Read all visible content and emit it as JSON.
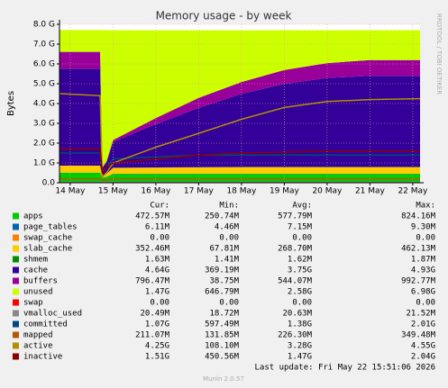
{
  "chart_data": {
    "type": "area",
    "title": "Memory usage - by week",
    "y_label": "Bytes",
    "watermark": "RRDTOOL / TOBI OETIKER",
    "x": [
      13.75,
      14.7,
      14.75,
      14.85,
      15,
      16,
      17,
      18,
      19,
      20,
      21,
      22.17
    ],
    "xlim": [
      13.75,
      22.17
    ],
    "xticks": [
      {
        "value": 14,
        "label": "14 May"
      },
      {
        "value": 15,
        "label": "15 May"
      },
      {
        "value": 16,
        "label": "16 May"
      },
      {
        "value": 17,
        "label": "17 May"
      },
      {
        "value": 18,
        "label": "18 May"
      },
      {
        "value": 19,
        "label": "19 May"
      },
      {
        "value": 20,
        "label": "20 May"
      },
      {
        "value": 21,
        "label": "21 May"
      },
      {
        "value": 22,
        "label": "22 May"
      }
    ],
    "ylim": [
      0,
      8589934592
    ],
    "yticks": [
      {
        "value": 0,
        "label": "0.0"
      },
      {
        "value": 1073741824,
        "label": "1.0 G"
      },
      {
        "value": 2147483648,
        "label": "2.0 G"
      },
      {
        "value": 3221225472,
        "label": "3.0 G"
      },
      {
        "value": 4294967296,
        "label": "4.0 G"
      },
      {
        "value": 5368709120,
        "label": "5.0 G"
      },
      {
        "value": 6442450944,
        "label": "6.0 G"
      },
      {
        "value": 7516192768,
        "label": "7.0 G"
      },
      {
        "value": 8589934592,
        "label": "8.0 G"
      }
    ],
    "grid": true,
    "legend_headers": [
      "Cur:",
      "Min:",
      "Avg:",
      "Max:"
    ],
    "series": [
      {
        "name": "apps",
        "color": "#00cc00",
        "style": "area",
        "values": [
          540000000.0,
          540000000.0,
          270000000.0,
          320000000.0,
          480000000.0,
          480000000.0,
          480000000.0,
          480000000.0,
          480000000.0,
          480000000.0,
          480000000.0,
          480000000.0
        ],
        "stats": [
          "472.57M",
          "250.74M",
          "577.79M",
          "824.16M"
        ]
      },
      {
        "name": "page_tables",
        "color": "#0066b3",
        "style": "area",
        "values": [
          6400000.0,
          6400000.0,
          6400000.0,
          6400000.0,
          6400000.0,
          6400000.0,
          6400000.0,
          6400000.0,
          6400000.0,
          6400000.0,
          6400000.0,
          6400000.0
        ],
        "stats": [
          "6.11M",
          "4.46M",
          "7.15M",
          "9.30M"
        ]
      },
      {
        "name": "swap_cache",
        "color": "#ff8000",
        "style": "area",
        "values": [
          0,
          0,
          0,
          0,
          0,
          0,
          0,
          0,
          0,
          0,
          0,
          0
        ],
        "stats": [
          "0.00",
          "0.00",
          "0.00",
          "0.00"
        ]
      },
      {
        "name": "slab_cache",
        "color": "#ffcc00",
        "style": "area",
        "values": [
          380000000.0,
          380000000.0,
          75000000.0,
          160000000.0,
          320000000.0,
          340000000.0,
          350000000.0,
          365000000.0,
          365000000.0,
          365000000.0,
          365000000.0,
          365000000.0
        ],
        "stats": [
          "352.46M",
          "67.81M",
          "268.70M",
          "462.13M"
        ]
      },
      {
        "name": "shmem",
        "color": "#008f00",
        "style": "area",
        "values": [
          1700000.0,
          1700000.0,
          1700000.0,
          1700000.0,
          1700000.0,
          1700000.0,
          1700000.0,
          1700000.0,
          1700000.0,
          1700000.0,
          1700000.0,
          1700000.0
        ],
        "stats": [
          "1.63M",
          "1.41M",
          "1.62M",
          "1.87M"
        ]
      },
      {
        "name": "cache",
        "color": "#330099",
        "style": "area",
        "values": [
          5260000000.0,
          5260000000.0,
          430000000.0,
          640000000.0,
          1400000000.0,
          2360000000.0,
          3220000000.0,
          3970000000.0,
          4510000000.0,
          4830000000.0,
          4940000000.0,
          4940000000.0
        ],
        "stats": [
          "4.64G",
          "369.19M",
          "3.75G",
          "4.93G"
        ]
      },
      {
        "name": "buffers",
        "color": "#990099",
        "style": "area",
        "values": [
          910000000.0,
          910000000.0,
          43000000.0,
          54000000.0,
          107000000.0,
          320000000.0,
          540000000.0,
          640000000.0,
          750000000.0,
          805000000.0,
          860000000.0,
          860000000.0
        ],
        "stats": [
          "796.47M",
          "38.75M",
          "544.07M",
          "992.77M"
        ]
      },
      {
        "name": "unused",
        "color": "#ccff00",
        "style": "area",
        "values": [
          1180000000.0,
          1180000000.0,
          7450000000.0,
          7090000000.0,
          5960000000.0,
          4760000000.0,
          3670000000.0,
          2800000000.0,
          2160000000.0,
          1780000000.0,
          1620000000.0,
          1620000000.0
        ],
        "stats": [
          "1.47G",
          "646.79M",
          "2.58G",
          "6.98G"
        ]
      },
      {
        "name": "swap",
        "color": "#ff0000",
        "style": "area",
        "values": [
          0,
          0,
          0,
          0,
          0,
          0,
          0,
          0,
          0,
          0,
          0,
          0
        ],
        "stats": [
          "0.00",
          "0.00",
          "0.00",
          "0.00"
        ]
      },
      {
        "name": "vmalloc_used",
        "color": "#888888",
        "style": "line",
        "values": [
          22000000.0,
          22000000.0,
          22000000.0,
          22000000.0,
          22000000.0,
          22000000.0,
          22000000.0,
          22000000.0,
          22000000.0,
          22000000.0,
          22000000.0,
          22000000.0
        ],
        "stats": [
          "20.49M",
          "18.72M",
          "20.63M",
          "21.52M"
        ]
      },
      {
        "name": "committed",
        "color": "#00487d",
        "style": "line",
        "values": [
          1610000000.0,
          1610000000.0,
          640000000.0,
          860000000.0,
          1290000000.0,
          1400000000.0,
          1500000000.0,
          1500000000.0,
          1500000000.0,
          1500000000.0,
          1500000000.0,
          1500000000.0
        ],
        "stats": [
          "1.07G",
          "597.49M",
          "1.38G",
          "2.01G"
        ]
      },
      {
        "name": "mapped",
        "color": "#b35a00",
        "style": "line",
        "values": [
          215000000.0,
          215000000.0,
          140000000.0,
          140000000.0,
          215000000.0,
          215000000.0,
          215000000.0,
          215000000.0,
          215000000.0,
          215000000.0,
          215000000.0,
          215000000.0
        ],
        "stats": [
          "211.07M",
          "131.85M",
          "226.30M",
          "349.48M"
        ]
      },
      {
        "name": "active",
        "color": "#b38f00",
        "style": "line",
        "values": [
          4830000000.0,
          4720000000.0,
          320000000.0,
          540000000.0,
          1070000000.0,
          1930000000.0,
          2680000000.0,
          3440000000.0,
          4080000000.0,
          4400000000.0,
          4510000000.0,
          4560000000.0
        ],
        "stats": [
          "4.25G",
          "108.10M",
          "3.28G",
          "4.55G"
        ]
      },
      {
        "name": "inactive",
        "color": "#8c0000",
        "style": "line",
        "values": [
          1830000000.0,
          1830000000.0,
          540000000.0,
          860000000.0,
          1070000000.0,
          1290000000.0,
          1500000000.0,
          1610000000.0,
          1660000000.0,
          1720000000.0,
          1720000000.0,
          1720000000.0
        ],
        "stats": [
          "1.51G",
          "450.56M",
          "1.47G",
          "2.04G"
        ]
      }
    ],
    "last_update": "Last update: Fri May 22 15:51:06 2026",
    "footer": "Munin 2.0.57"
  }
}
